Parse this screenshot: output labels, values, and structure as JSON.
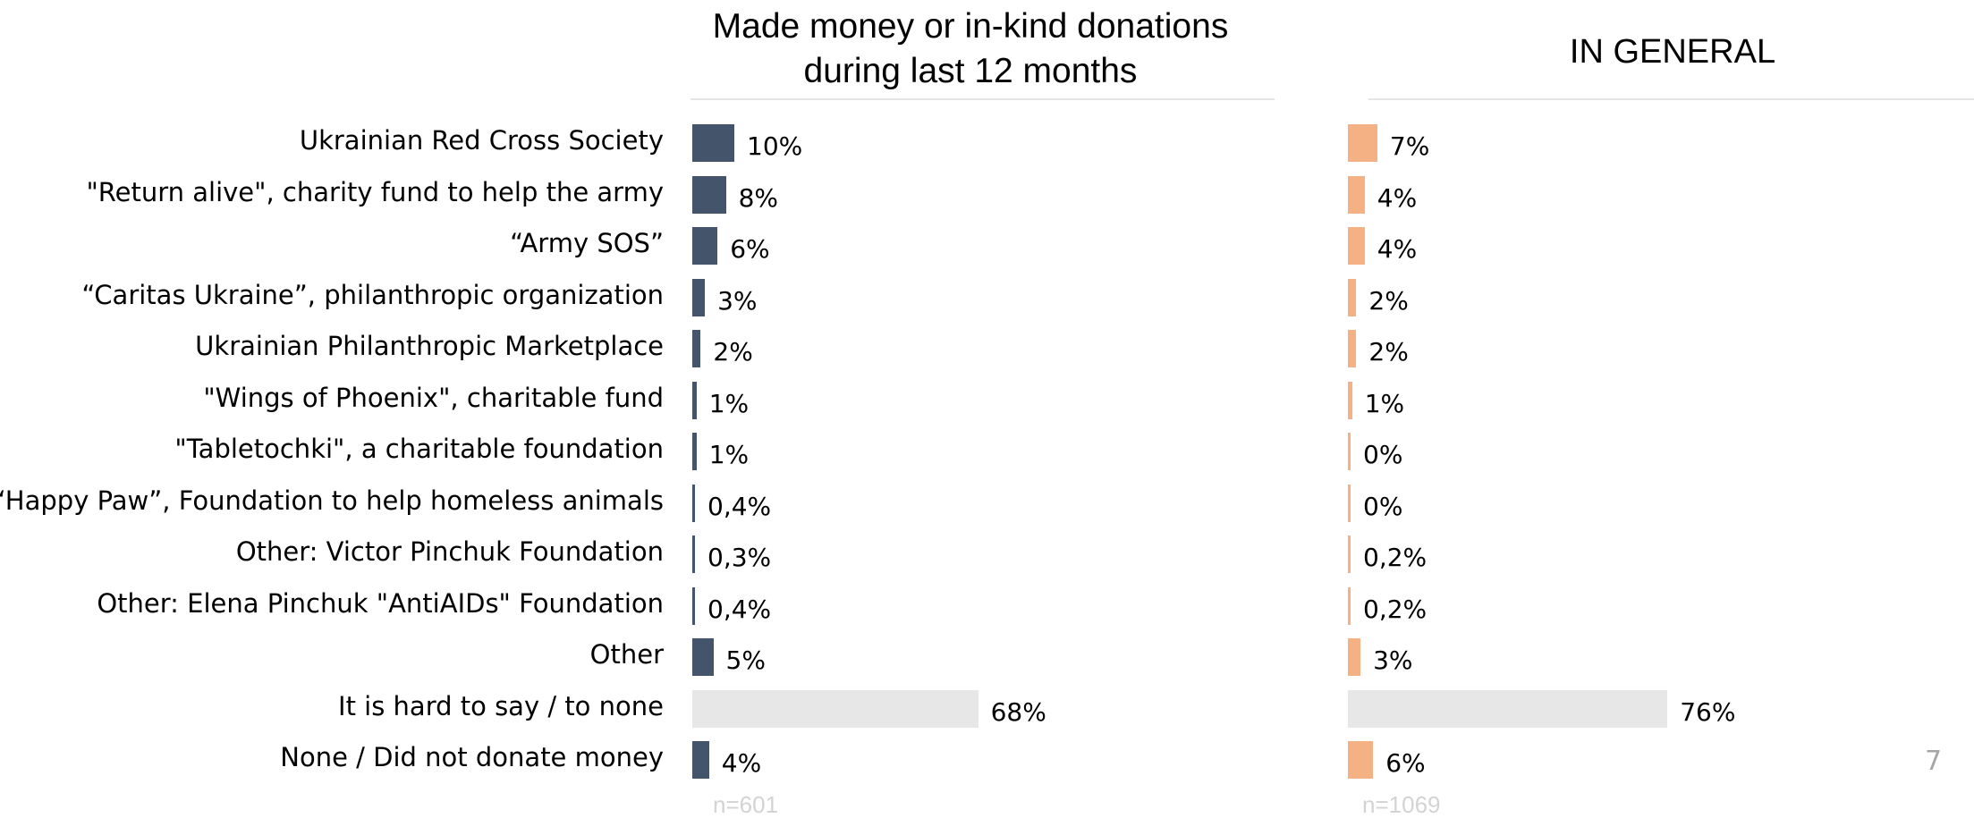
{
  "chart_data": [
    {
      "type": "bar",
      "orientation": "horizontal",
      "title": "Made money or in-kind donations during last 12 months",
      "categories": [
        "Ukrainian Red Cross Society",
        "\"Return alive\", charity fund to help the army",
        "“Army SOS”",
        "“Caritas Ukraine”, philanthropic organization",
        "Ukrainian Philanthropic Marketplace",
        "\"Wings of Phoenix\", charitable fund",
        "\"Tabletochki\", a charitable foundation",
        "“Happy Paw”, Foundation to help homeless animals",
        "Other: Victor Pinchuk Foundation",
        "Other: Elena Pinchuk \"AntiAIDs\" Foundation",
        "Other",
        "It is hard to say / to none",
        "None / Did not donate money"
      ],
      "values": [
        10,
        8,
        6,
        3,
        2,
        1,
        1,
        0.4,
        0.3,
        0.4,
        5,
        68,
        4
      ],
      "value_labels": [
        "10%",
        "8%",
        "6%",
        "3%",
        "2%",
        "1%",
        "1%",
        "0,4%",
        "0,3%",
        "0,4%",
        "5%",
        "68%",
        "4%"
      ],
      "unit": "%",
      "xlim": [
        0,
        100
      ],
      "sample_note": "n=601",
      "colors": {
        "bar": "#44546a",
        "hard_to_say": "#e7e7e7"
      }
    },
    {
      "type": "bar",
      "orientation": "horizontal",
      "title": "IN GENERAL",
      "categories": [
        "Ukrainian Red Cross Society",
        "\"Return alive\", charity fund to help the army",
        "“Army SOS”",
        "“Caritas Ukraine”, philanthropic organization",
        "Ukrainian Philanthropic Marketplace",
        "\"Wings of Phoenix\", charitable fund",
        "\"Tabletochki\", a charitable foundation",
        "“Happy Paw”, Foundation to help homeless animals",
        "Other: Victor Pinchuk Foundation",
        "Other: Elena Pinchuk \"AntiAIDs\" Foundation",
        "Other",
        "It is hard to say / to none",
        "None / Did not donate money"
      ],
      "values": [
        7,
        4,
        4,
        2,
        2,
        1,
        0,
        0,
        0.2,
        0.2,
        3,
        76,
        6
      ],
      "value_labels": [
        "7%",
        "4%",
        "4%",
        "2%",
        "2%",
        "1%",
        "0%",
        "0%",
        "0,2%",
        "0,2%",
        "3%",
        "76%",
        "6%"
      ],
      "unit": "%",
      "xlim": [
        0,
        100
      ],
      "sample_note": "n=1069",
      "colors": {
        "bar": "#f4b183",
        "hard_to_say": "#e7e7e7"
      }
    }
  ],
  "page_number": "7"
}
